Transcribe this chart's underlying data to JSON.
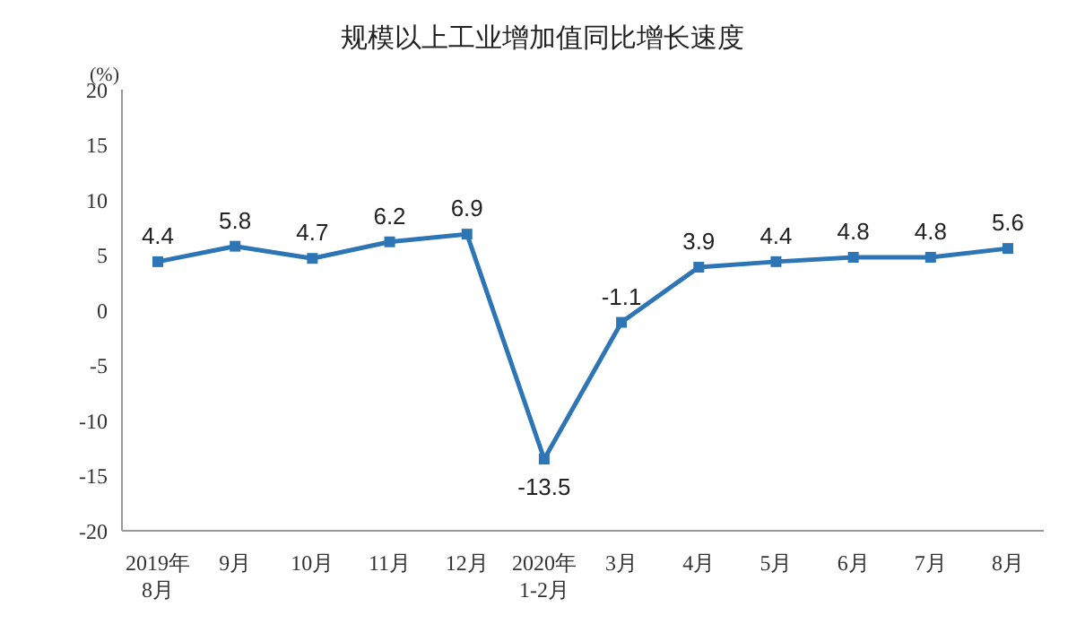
{
  "chart_data": {
    "type": "line",
    "title": "规模以上工业增加值同比增长速度",
    "ylabel": "(%)",
    "categories": [
      "2019年\n8月",
      "9月",
      "10月",
      "11月",
      "12月",
      "2020年\n1-2月",
      "3月",
      "4月",
      "5月",
      "6月",
      "7月",
      "8月"
    ],
    "series": [
      {
        "color": "#2e75b6",
        "values": [
          4.4,
          5.8,
          4.7,
          6.2,
          6.9,
          -13.5,
          -1.1,
          3.9,
          4.4,
          4.8,
          4.8,
          5.6
        ]
      }
    ],
    "ylim": [
      -20,
      20
    ],
    "yticks": [
      -20,
      -15,
      -10,
      -5,
      0,
      5,
      10,
      15,
      20
    ],
    "grid": false,
    "legend": false,
    "marker": "square",
    "line_style": "solid",
    "data_labels": true
  }
}
